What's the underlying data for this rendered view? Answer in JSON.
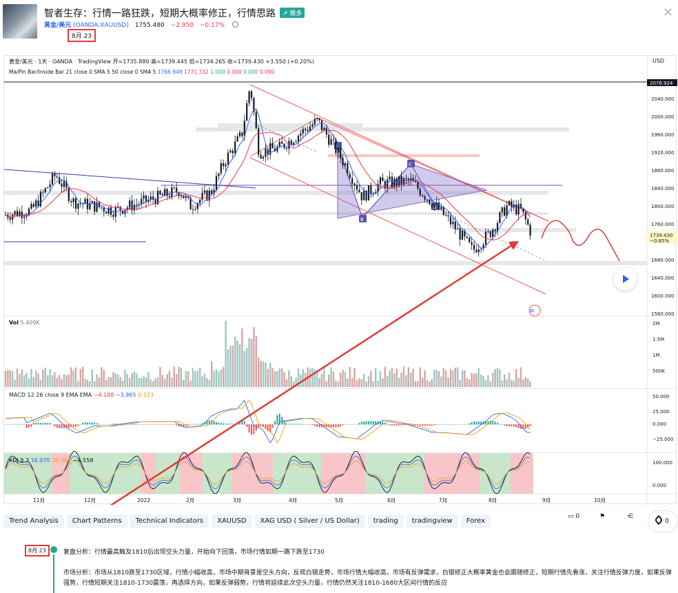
{
  "header": {
    "title": "智者生存：行情一路狂跌，短期大概率修正，行情思路",
    "badge": "↗ 做多",
    "symbol_name": "黄金/美元",
    "symbol_code": "(OANDA:XAUUSD)",
    "price": "1755.480",
    "change": "−2.950",
    "change_pct": "−0.17%",
    "date": "8月 23"
  },
  "chart": {
    "ohlc": "黄金/美元 · 1天 · OANDA · TradingView  开=1735.880 高=1739.445 低=1734.265 收=1739.430 +3.550 (+0.20%)",
    "ma_name": "Ma/Pin Bar/Inside Bar 21 close 0 SMA 5 50 close 0 SMA 5",
    "ma_v1": "1766.949",
    "ma_v2": "1771.332",
    "ma_v3": "1.000",
    "ma_v4": "0.000",
    "ma_v5": "0.000",
    "ma_v6": "0.000",
    "currency": "USD",
    "price_axis": [
      "2040.000",
      "2000.000",
      "1960.000",
      "1920.000",
      "1880.000",
      "1840.000",
      "1800.000",
      "1760.000",
      "1720.000",
      "1680.000",
      "1640.000",
      "1600.000",
      "1560.000"
    ],
    "top_price": "2076.924",
    "last_price": "1739.430",
    "last_pct": "−0.85%",
    "time_axis": [
      "11月",
      "12月",
      "2022",
      "2月",
      "3月",
      "4月",
      "5月",
      "6月",
      "7月",
      "8月",
      "9月",
      "10月"
    ],
    "pattern_labels": [
      "A",
      "B",
      "C",
      "D"
    ],
    "vol_label": "Vol",
    "vol_value": "5.409K",
    "vol_axis": [
      "2M",
      "1.5M",
      "1M",
      "500K"
    ],
    "macd_label": "MACD 12 26 close 9 EMA EMA",
    "macd_v1": "−4.188",
    "macd_v2": "−3.865",
    "macd_v3": "0.323",
    "macd_axis": [
      "50.000",
      "25.000",
      "0.000",
      "−25.000"
    ],
    "kdj_label": "KDJ 9 3",
    "kdj_v1": "16.070",
    "kdj_v2": "26.384",
    "kdj_v3": "−4.558",
    "kdj_axis": [
      "100.000",
      "0.000"
    ],
    "colors": {
      "up": "#26a69a",
      "down": "#ef5350",
      "accent": "#2962ff",
      "arrow": "#e53935"
    }
  },
  "tags": [
    "Trend Analysis",
    "Chart Patterns",
    "Technical Indicators",
    "XAUUSD",
    "XAG USD ( Silver / US Dollar)",
    "trading",
    "tradingview",
    "Forex"
  ],
  "actions": {
    "comments": "0",
    "boost": "0"
  },
  "timeline": {
    "date": "8月 23",
    "summary": "复盘分析：行情最高触及1810后出现空头力量，开始向下回落，市场行情如期一路下跌至1730",
    "body": "市场分析：市场从1810跌至1730区域，行情小幅收高，市场中期背景是空头方向，反观白银走势，市场行情大幅收高，市场有反弹需求，白银修正大概率黄金也会跟随修正，短期行情先看涨，关注行情反弹力度，如果反弹强势，行情短期关注1810-1730震荡，再选择方向，如果反弹弱势，行情将延续此次空头力量，行情仍然关注1810-1680大区间行情的反应"
  }
}
